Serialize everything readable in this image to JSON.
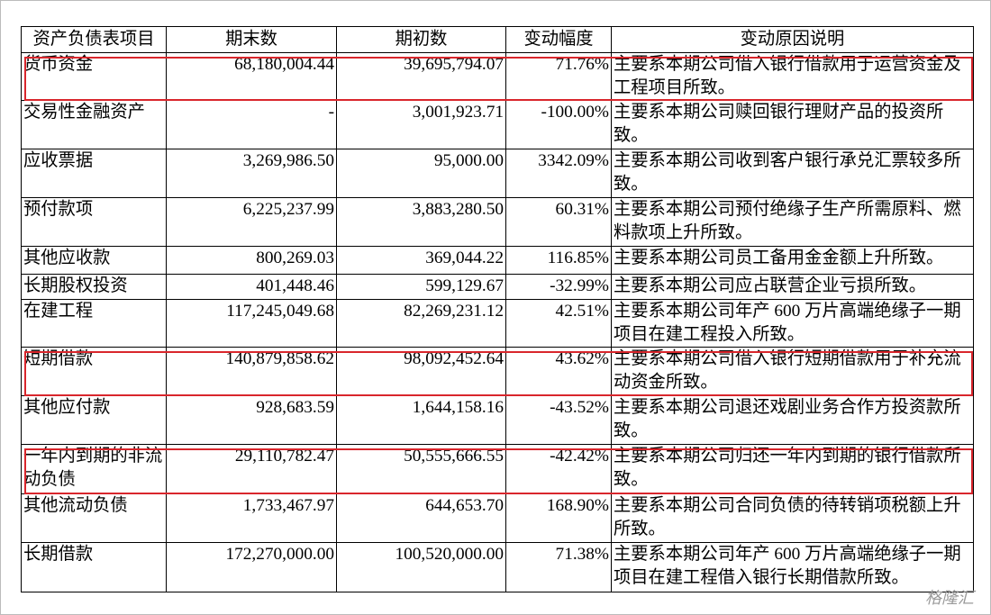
{
  "table": {
    "header": [
      "资产负债表项目",
      "期末数",
      "期初数",
      "变动幅度",
      "变动原因说明"
    ],
    "rows": [
      [
        "货币资金",
        "68,180,004.44",
        "39,695,794.07",
        "71.76%",
        "主要系本期公司借入银行借款用于运营资金及工程项目所致。"
      ],
      [
        "交易性金融资产",
        "-",
        "3,001,923.71",
        "-100.00%",
        "主要系本期公司赎回银行理财产品的投资所致。"
      ],
      [
        "应收票据",
        "3,269,986.50",
        "95,000.00",
        "3342.09%",
        "主要系本期公司收到客户银行承兑汇票较多所致。"
      ],
      [
        "预付款项",
        "6,225,237.99",
        "3,883,280.50",
        "60.31%",
        "主要系本期公司预付绝缘子生产所需原料、燃料款项上升所致。"
      ],
      [
        "其他应收款",
        "800,269.03",
        "369,044.22",
        "116.85%",
        "主要系本期公司员工备用金金额上升所致。"
      ],
      [
        "长期股权投资",
        "401,448.46",
        "599,129.67",
        "-32.99%",
        "主要系本期公司应占联营企业亏损所致。"
      ],
      [
        "在建工程",
        "117,245,049.68",
        "82,269,231.12",
        "42.51%",
        "主要系本期公司年产 600 万片高端绝缘子一期项目在建工程投入所致。"
      ],
      [
        "短期借款",
        "140,879,858.62",
        "98,092,452.64",
        "43.62%",
        "主要系本期公司借入银行短期借款用于补充流动资金所致。"
      ],
      [
        "其他应付款",
        "928,683.59",
        "1,644,158.16",
        "-43.52%",
        "主要系本期公司退还戏剧业务合作方投资款所致。"
      ],
      [
        "一年内到期的非流动负债",
        "29,110,782.47",
        "50,555,666.55",
        "-42.42%",
        "主要系本期公司归还一年内到期的银行借款所致。"
      ],
      [
        "其他流动负债",
        "1,733,467.97",
        "644,653.70",
        "168.90%",
        "主要系本期公司合同负债的待转销项税额上升所致。"
      ],
      [
        "长期借款",
        "172,270,000.00",
        "100,520,000.00",
        "71.38%",
        "主要系本期公司年产 600 万片高端绝缘子一期项目在建工程借入银行长期借款所致。"
      ]
    ]
  },
  "watermark": "格隆汇"
}
